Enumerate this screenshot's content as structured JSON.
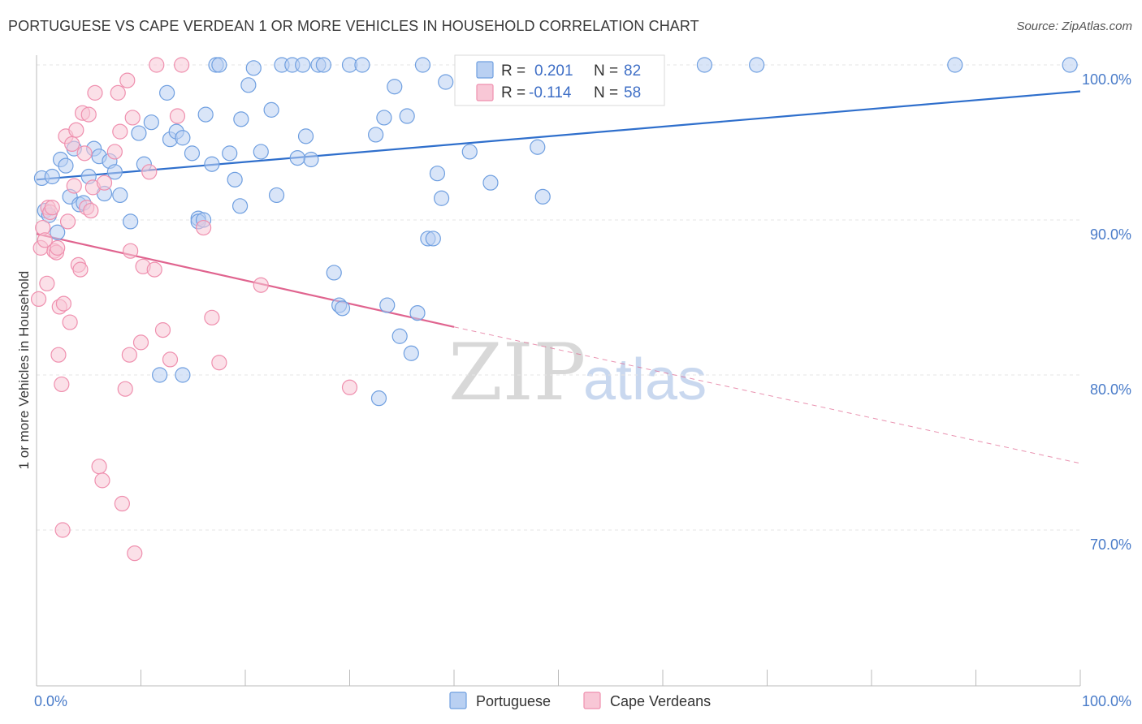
{
  "title": "PORTUGUESE VS CAPE VERDEAN 1 OR MORE VEHICLES IN HOUSEHOLD CORRELATION CHART",
  "source": "Source: ZipAtlas.com",
  "watermark": {
    "zip": "ZIP",
    "atlas": "atlas"
  },
  "legend_box": {
    "rows": [
      {
        "r_label": "R =",
        "r_value": "0.201",
        "n_label": "N =",
        "n_value": "82",
        "color": "#8db4e8"
      },
      {
        "r_label": "R =",
        "r_value": "-0.114",
        "n_label": "N =",
        "n_value": "58",
        "color": "#f2a7bf"
      }
    ]
  },
  "chart_data": {
    "type": "scatter",
    "title": "PORTUGUESE VS CAPE VERDEAN 1 OR MORE VEHICLES IN HOUSEHOLD CORRELATION CHART",
    "xlabel": "",
    "ylabel": "1 or more Vehicles in Household",
    "xlim": [
      0,
      100
    ],
    "ylim": [
      60,
      100
    ],
    "x_tick_labels": [
      "0.0%",
      "100.0%"
    ],
    "y_ticks": [
      {
        "value": 100,
        "label": "100.0%"
      },
      {
        "value": 90,
        "label": "90.0%"
      },
      {
        "value": 80,
        "label": "80.0%"
      },
      {
        "value": 70,
        "label": "70.0%"
      }
    ],
    "grid": true,
    "legend_position": "bottom",
    "series": [
      {
        "name": "Portuguese",
        "color": "#6f9fe0",
        "fill": "#b9d0f2",
        "trend": {
          "x0": 0,
          "y0": 92.6,
          "x1": 100,
          "y1": 98.3,
          "color": "#2f6fcc"
        },
        "points": [
          [
            0.5,
            92.7
          ],
          [
            0.8,
            90.6
          ],
          [
            1.2,
            90.3
          ],
          [
            1.5,
            92.8
          ],
          [
            2.0,
            89.2
          ],
          [
            2.3,
            93.9
          ],
          [
            2.8,
            93.5
          ],
          [
            3.2,
            91.5
          ],
          [
            3.6,
            94.6
          ],
          [
            4.1,
            91.0
          ],
          [
            4.5,
            91.1
          ],
          [
            5.0,
            92.8
          ],
          [
            5.5,
            94.6
          ],
          [
            6.0,
            94.1
          ],
          [
            6.5,
            91.7
          ],
          [
            7.0,
            93.8
          ],
          [
            7.5,
            93.1
          ],
          [
            8.0,
            91.6
          ],
          [
            9.0,
            89.9
          ],
          [
            9.8,
            95.6
          ],
          [
            10.3,
            93.6
          ],
          [
            11.0,
            96.3
          ],
          [
            11.8,
            80.0
          ],
          [
            12.5,
            98.2
          ],
          [
            12.8,
            95.2
          ],
          [
            13.4,
            95.7
          ],
          [
            14.0,
            95.3
          ],
          [
            14.9,
            94.3
          ],
          [
            15.5,
            90.1
          ],
          [
            15.5,
            89.9
          ],
          [
            16.2,
            96.8
          ],
          [
            16.8,
            93.6
          ],
          [
            17.2,
            100.0
          ],
          [
            17.5,
            100.0
          ],
          [
            18.5,
            94.3
          ],
          [
            19.0,
            92.6
          ],
          [
            19.5,
            90.9
          ],
          [
            19.6,
            96.5
          ],
          [
            20.3,
            98.7
          ],
          [
            20.8,
            99.8
          ],
          [
            21.5,
            94.4
          ],
          [
            22.5,
            97.1
          ],
          [
            23.0,
            91.6
          ],
          [
            23.5,
            100.0
          ],
          [
            24.5,
            100.0
          ],
          [
            25.5,
            100.0
          ],
          [
            25.8,
            95.4
          ],
          [
            26.3,
            93.9
          ],
          [
            27.0,
            100.0
          ],
          [
            27.5,
            100.0
          ],
          [
            28.5,
            86.6
          ],
          [
            29.0,
            84.5
          ],
          [
            29.3,
            84.3
          ],
          [
            30.0,
            100.0
          ],
          [
            31.2,
            100.0
          ],
          [
            32.5,
            95.5
          ],
          [
            32.8,
            78.5
          ],
          [
            33.3,
            96.6
          ],
          [
            33.6,
            84.5
          ],
          [
            34.3,
            98.6
          ],
          [
            34.8,
            82.5
          ],
          [
            35.5,
            96.7
          ],
          [
            35.9,
            81.4
          ],
          [
            36.5,
            84.0
          ],
          [
            37.0,
            100.0
          ],
          [
            37.5,
            88.8
          ],
          [
            38.0,
            88.8
          ],
          [
            38.4,
            93.0
          ],
          [
            38.8,
            91.4
          ],
          [
            39.2,
            98.9
          ],
          [
            41.5,
            94.4
          ],
          [
            43.5,
            92.4
          ],
          [
            45.0,
            100.0
          ],
          [
            48.0,
            94.7
          ],
          [
            48.5,
            91.5
          ],
          [
            64.0,
            100.0
          ],
          [
            69.0,
            100.0
          ],
          [
            88.0,
            100.0
          ],
          [
            99.0,
            100.0
          ],
          [
            14.0,
            80.0
          ],
          [
            16.0,
            90.0
          ],
          [
            25.0,
            94.0
          ]
        ]
      },
      {
        "name": "Cape Verdeans",
        "color": "#ef8fae",
        "fill": "#f8c7d6",
        "trend": {
          "x0": 0,
          "y0": 89.1,
          "x1": 40,
          "y1": 83.1,
          "color": "#e0648f"
        },
        "trend_dashed": {
          "x0": 40,
          "y0": 83.1,
          "x1": 100,
          "y1": 74.3
        },
        "points": [
          [
            0.2,
            84.9
          ],
          [
            0.4,
            88.2
          ],
          [
            0.6,
            89.5
          ],
          [
            0.8,
            88.7
          ],
          [
            1.0,
            85.9
          ],
          [
            1.1,
            90.8
          ],
          [
            1.3,
            90.5
          ],
          [
            1.5,
            90.8
          ],
          [
            1.7,
            88.0
          ],
          [
            1.9,
            87.9
          ],
          [
            2.0,
            88.2
          ],
          [
            2.1,
            81.3
          ],
          [
            2.2,
            84.4
          ],
          [
            2.4,
            79.4
          ],
          [
            2.5,
            70.0
          ],
          [
            2.6,
            84.6
          ],
          [
            2.8,
            95.4
          ],
          [
            3.0,
            89.9
          ],
          [
            3.2,
            83.4
          ],
          [
            3.4,
            94.9
          ],
          [
            3.6,
            92.2
          ],
          [
            3.8,
            95.8
          ],
          [
            4.0,
            87.1
          ],
          [
            4.2,
            86.8
          ],
          [
            4.4,
            96.9
          ],
          [
            4.6,
            94.3
          ],
          [
            4.8,
            90.8
          ],
          [
            5.0,
            96.8
          ],
          [
            5.2,
            90.6
          ],
          [
            5.4,
            92.1
          ],
          [
            5.6,
            98.2
          ],
          [
            6.0,
            74.1
          ],
          [
            6.3,
            73.2
          ],
          [
            6.5,
            92.4
          ],
          [
            7.5,
            94.4
          ],
          [
            7.8,
            98.2
          ],
          [
            8.0,
            95.7
          ],
          [
            8.2,
            71.7
          ],
          [
            8.5,
            79.1
          ],
          [
            8.7,
            99.0
          ],
          [
            8.9,
            81.3
          ],
          [
            9.2,
            96.6
          ],
          [
            9.4,
            68.5
          ],
          [
            10.0,
            82.1
          ],
          [
            10.2,
            87.0
          ],
          [
            10.8,
            93.1
          ],
          [
            11.3,
            86.8
          ],
          [
            11.5,
            100.0
          ],
          [
            12.1,
            82.9
          ],
          [
            12.8,
            81.0
          ],
          [
            13.5,
            96.7
          ],
          [
            13.9,
            100.0
          ],
          [
            16.0,
            89.5
          ],
          [
            16.8,
            83.7
          ],
          [
            17.5,
            80.8
          ],
          [
            21.5,
            85.8
          ],
          [
            30.0,
            79.2
          ],
          [
            9.0,
            88.0
          ]
        ]
      }
    ]
  }
}
